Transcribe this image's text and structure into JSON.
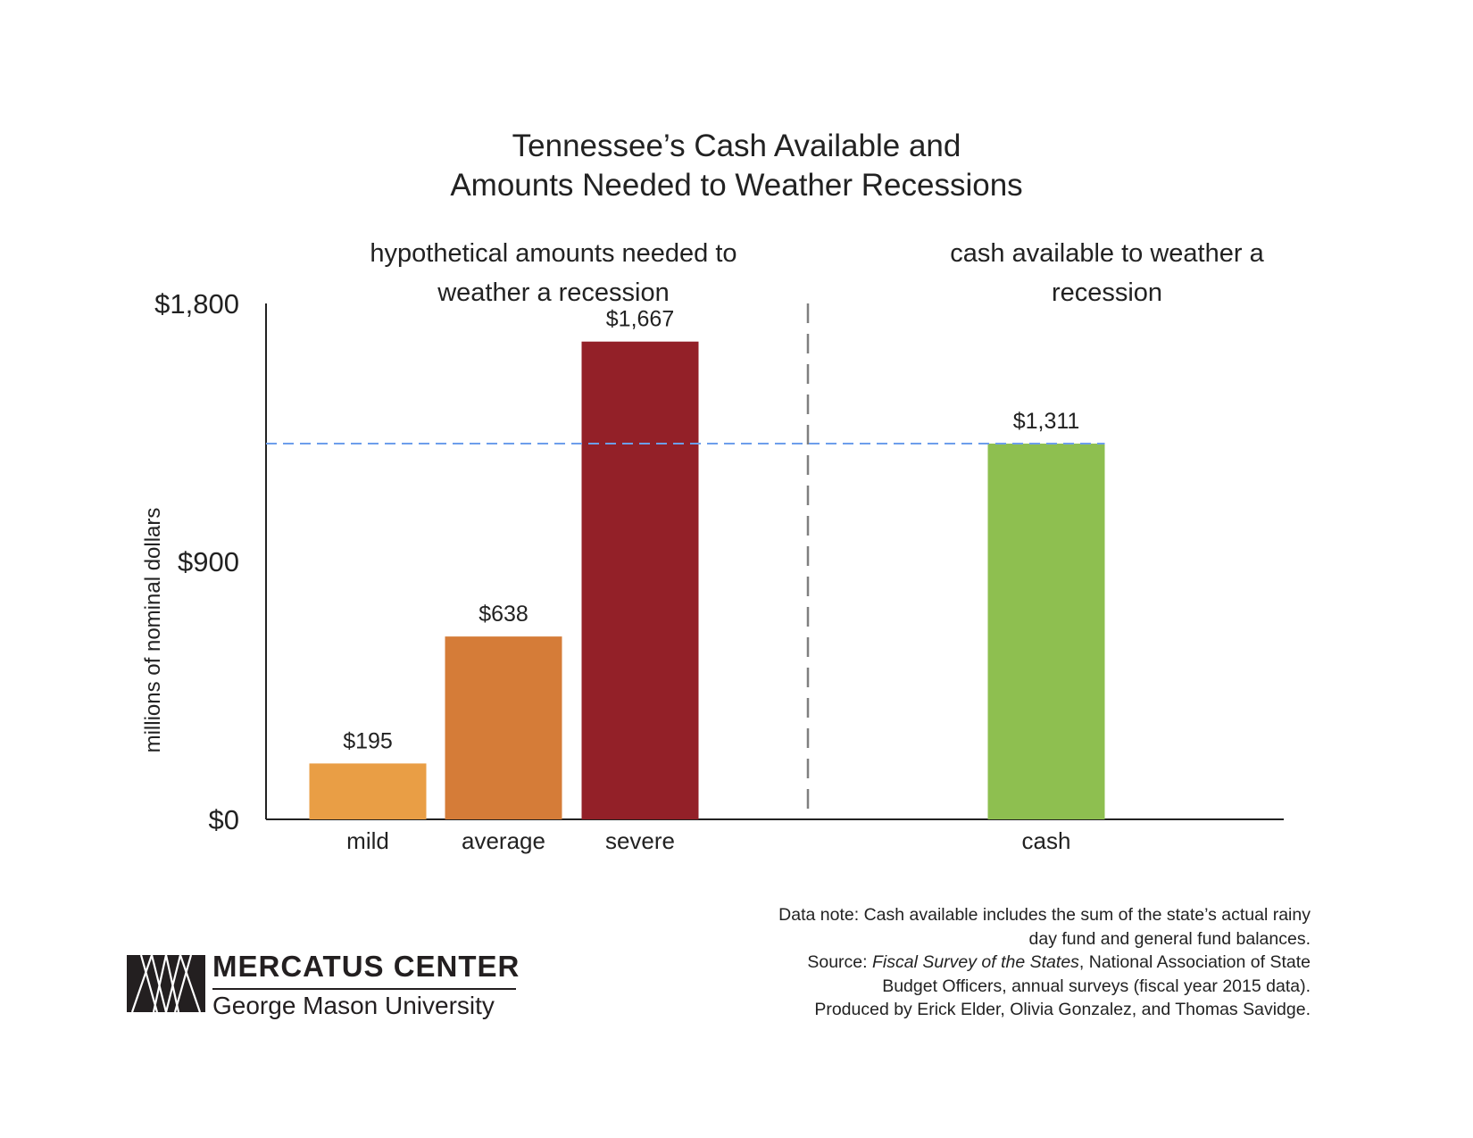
{
  "chart_data": {
    "type": "bar",
    "title_lines": [
      "Tennessee’s Cash Available and",
      "Amounts Needed to Weather Recessions"
    ],
    "ylabel": "millions of nominal dollars",
    "ylim": [
      0,
      1800
    ],
    "y_ticks": [
      0,
      900,
      1800
    ],
    "y_tick_labels": [
      "$0",
      "$900",
      "$1,800"
    ],
    "groups": [
      {
        "label_lines": [
          "hypothetical amounts needed to",
          "weather a recession"
        ]
      },
      {
        "label_lines": [
          "cash available to weather a",
          "recession"
        ]
      }
    ],
    "categories": [
      "mild",
      "average",
      "severe",
      "cash"
    ],
    "values": [
      195,
      638,
      1667,
      1311
    ],
    "value_labels": [
      "$195",
      "$638",
      "$1,667",
      "$1,311"
    ],
    "colors": [
      "#E99E45",
      "#D57C38",
      "#932028",
      "#8EBF50"
    ],
    "reference_line": {
      "value": 1311,
      "style": "dashed",
      "color": "#6D9EEB"
    },
    "separator_color": "#7f7f7f"
  },
  "footer": {
    "note_line1": "Data note: Cash available includes the sum of the state’s actual rainy",
    "note_line2": "day fund and general fund balances.",
    "source_prefix": "Source: ",
    "source_title": "Fiscal Survey of the States",
    "source_rest": ", National Association of State",
    "source_line2": "Budget Officers, annual surveys (fiscal year 2015 data).",
    "produced_by": "Produced by Erick Elder, Olivia Gonzalez, and Thomas Savidge."
  },
  "logo": {
    "name": "MERCATUS CENTER",
    "subtitle": "George Mason University"
  }
}
